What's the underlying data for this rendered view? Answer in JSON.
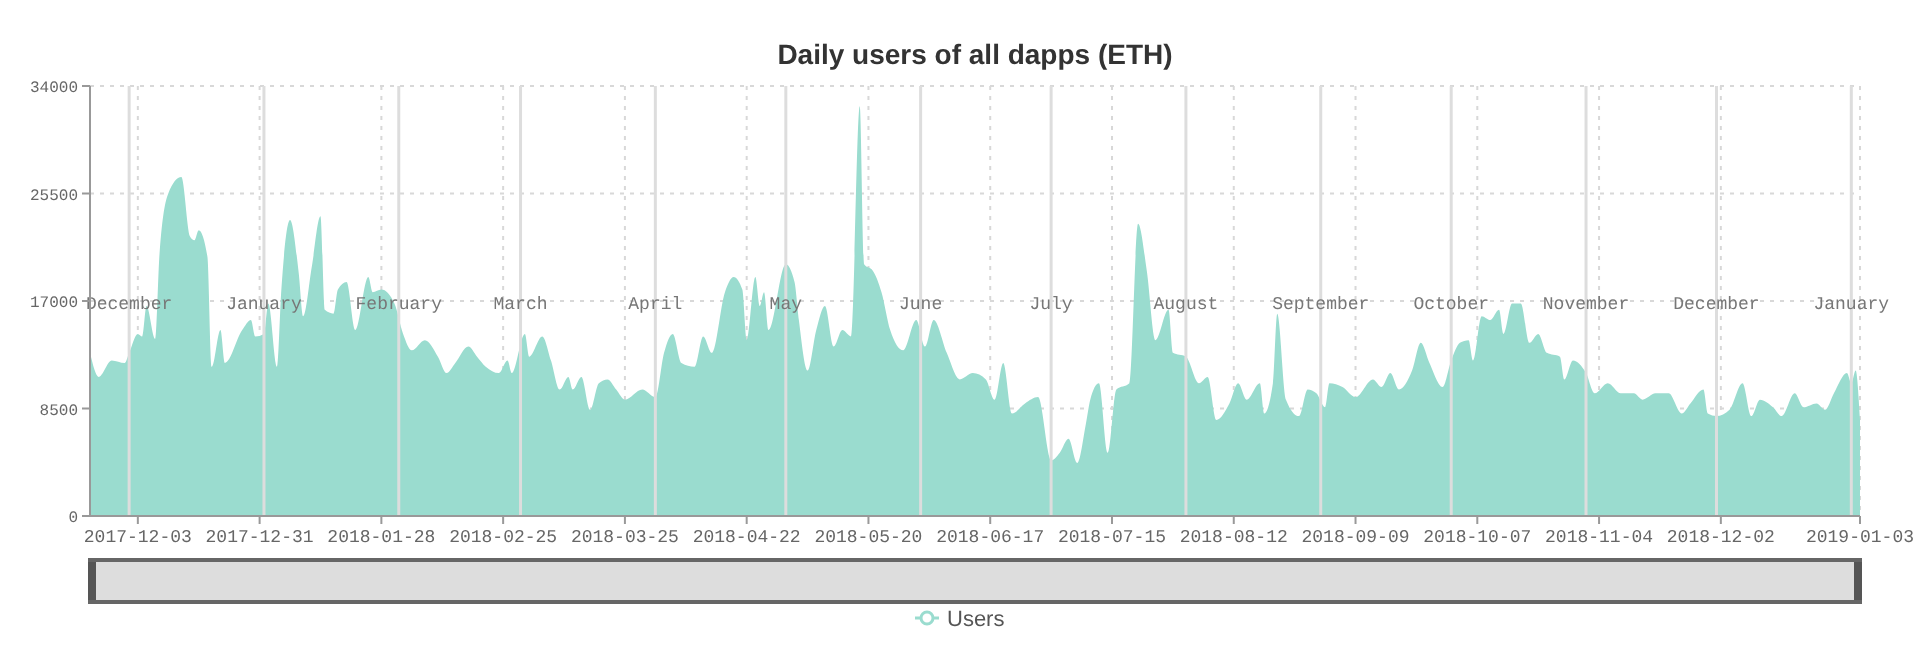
{
  "chart_data": {
    "type": "area",
    "title": "Daily users of all dapps (ETH)",
    "xlim": [
      "2017-11-22",
      "2019-01-03"
    ],
    "xticks": [
      "2017-12-03",
      "2017-12-31",
      "2018-01-28",
      "2018-02-25",
      "2018-03-25",
      "2018-04-22",
      "2018-05-20",
      "2018-06-17",
      "2018-07-15",
      "2018-08-12",
      "2018-09-09",
      "2018-10-07",
      "2018-11-04",
      "2018-12-02",
      "2019-01-03"
    ],
    "ylim": [
      0,
      34000
    ],
    "yticks": [
      0,
      8500,
      17000,
      25500,
      34000
    ],
    "grid": true,
    "legend": "bottom",
    "x2lim": [
      "2017-11-22",
      "2019-01-03"
    ],
    "x2ticks": [
      {
        "value": "2017-12-01",
        "label": "December"
      },
      {
        "value": "2018-01-01",
        "label": "January"
      },
      {
        "value": "2018-02-01",
        "label": "February"
      },
      {
        "value": "2018-03-01",
        "label": "March"
      },
      {
        "value": "2018-04-01",
        "label": "April"
      },
      {
        "value": "2018-05-01",
        "label": "May"
      },
      {
        "value": "2018-06-01",
        "label": "June"
      },
      {
        "value": "2018-07-01",
        "label": "July"
      },
      {
        "value": "2018-08-01",
        "label": "August"
      },
      {
        "value": "2018-09-01",
        "label": "September"
      },
      {
        "value": "2018-10-01",
        "label": "October"
      },
      {
        "value": "2018-11-01",
        "label": "November"
      },
      {
        "value": "2018-12-01",
        "label": "December"
      },
      {
        "value": "2019-01-01",
        "label": "January"
      }
    ],
    "series": [
      {
        "name": "Users",
        "color": "#9adccf",
        "x": [
          "2017-11-22",
          "2017-11-24",
          "2017-11-27",
          "2017-11-30",
          "2017-12-01",
          "2017-12-03",
          "2017-12-04",
          "2017-12-05",
          "2017-12-07",
          "2017-12-08",
          "2017-12-10",
          "2017-12-13",
          "2017-12-15",
          "2017-12-16",
          "2017-12-17",
          "2017-12-19",
          "2017-12-20",
          "2017-12-22",
          "2017-12-23",
          "2017-12-27",
          "2017-12-29",
          "2017-12-30",
          "2018-01-01",
          "2018-01-02",
          "2018-01-04",
          "2018-01-05",
          "2018-01-07",
          "2018-01-09",
          "2018-01-10",
          "2018-01-12",
          "2018-01-14",
          "2018-01-15",
          "2018-01-17",
          "2018-01-18",
          "2018-01-20",
          "2018-01-22",
          "2018-01-25",
          "2018-01-26",
          "2018-01-28",
          "2018-01-31",
          "2018-02-02",
          "2018-02-04",
          "2018-02-07",
          "2018-02-10",
          "2018-02-12",
          "2018-02-14",
          "2018-02-17",
          "2018-02-19",
          "2018-02-21",
          "2018-02-24",
          "2018-02-26",
          "2018-02-27",
          "2018-03-02",
          "2018-03-03",
          "2018-03-06",
          "2018-03-08",
          "2018-03-10",
          "2018-03-12",
          "2018-03-13",
          "2018-03-15",
          "2018-03-17",
          "2018-03-19",
          "2018-03-21",
          "2018-03-23",
          "2018-03-25",
          "2018-03-29",
          "2018-04-01",
          "2018-04-03",
          "2018-04-05",
          "2018-04-07",
          "2018-04-10",
          "2018-04-12",
          "2018-04-14",
          "2018-04-17",
          "2018-04-19",
          "2018-04-21",
          "2018-04-22",
          "2018-04-24",
          "2018-04-25",
          "2018-04-26",
          "2018-04-27",
          "2018-05-01",
          "2018-05-03",
          "2018-05-04",
          "2018-05-06",
          "2018-05-08",
          "2018-05-10",
          "2018-05-12",
          "2018-05-14",
          "2018-05-16",
          "2018-05-18",
          "2018-05-19",
          "2018-05-21",
          "2018-05-23",
          "2018-05-25",
          "2018-05-28",
          "2018-05-31",
          "2018-06-02",
          "2018-06-04",
          "2018-06-07",
          "2018-06-10",
          "2018-06-13",
          "2018-06-16",
          "2018-06-18",
          "2018-06-20",
          "2018-06-22",
          "2018-06-25",
          "2018-06-28",
          "2018-07-01",
          "2018-07-03",
          "2018-07-05",
          "2018-07-07",
          "2018-07-09",
          "2018-07-10",
          "2018-07-12",
          "2018-07-14",
          "2018-07-16",
          "2018-07-19",
          "2018-07-21",
          "2018-07-23",
          "2018-07-25",
          "2018-07-28",
          "2018-07-29",
          "2018-08-01",
          "2018-08-04",
          "2018-08-06",
          "2018-08-08",
          "2018-08-11",
          "2018-08-13",
          "2018-08-15",
          "2018-08-18",
          "2018-08-19",
          "2018-08-21",
          "2018-08-22",
          "2018-08-24",
          "2018-08-27",
          "2018-08-29",
          "2018-08-31",
          "2018-09-02",
          "2018-09-03",
          "2018-09-06",
          "2018-09-09",
          "2018-09-13",
          "2018-09-15",
          "2018-09-17",
          "2018-09-19",
          "2018-09-22",
          "2018-09-24",
          "2018-09-26",
          "2018-09-29",
          "2018-10-01",
          "2018-10-03",
          "2018-10-05",
          "2018-10-06",
          "2018-10-08",
          "2018-10-10",
          "2018-10-12",
          "2018-10-13",
          "2018-10-15",
          "2018-10-17",
          "2018-10-19",
          "2018-10-21",
          "2018-10-23",
          "2018-10-26",
          "2018-10-27",
          "2018-10-29",
          "2018-11-01",
          "2018-11-03",
          "2018-11-06",
          "2018-11-09",
          "2018-11-12",
          "2018-11-14",
          "2018-11-17",
          "2018-11-20",
          "2018-11-23",
          "2018-11-25",
          "2018-11-28",
          "2018-11-29",
          "2018-12-01",
          "2018-12-04",
          "2018-12-07",
          "2018-12-09",
          "2018-12-11",
          "2018-12-14",
          "2018-12-16",
          "2018-12-19",
          "2018-12-21",
          "2018-12-24",
          "2018-12-26",
          "2018-12-28",
          "2018-12-31",
          "2019-01-01",
          "2019-01-02",
          "2019-01-03"
        ],
        "values": [
          12900,
          11000,
          12300,
          12100,
          12900,
          14400,
          14200,
          16600,
          14000,
          20800,
          25500,
          26800,
          22100,
          21800,
          22600,
          20500,
          11800,
          14700,
          12100,
          14700,
          15500,
          14200,
          14400,
          16800,
          11800,
          17900,
          23400,
          19200,
          15800,
          19700,
          23700,
          16300,
          16000,
          17900,
          18500,
          14700,
          18900,
          17700,
          17900,
          16800,
          14400,
          13100,
          13900,
          12600,
          11300,
          12100,
          13400,
          12600,
          11800,
          11300,
          12300,
          11300,
          14400,
          12600,
          14200,
          12300,
          10000,
          11000,
          10000,
          11000,
          8400,
          10500,
          10800,
          10000,
          9200,
          10000,
          9400,
          12900,
          14400,
          12100,
          11800,
          14200,
          12900,
          17700,
          18900,
          17900,
          13900,
          18900,
          16600,
          17700,
          14700,
          19900,
          18500,
          15500,
          11500,
          14700,
          16600,
          13400,
          14700,
          14200,
          32400,
          19900,
          19400,
          17700,
          14700,
          13100,
          15500,
          13400,
          15500,
          12900,
          10800,
          11300,
          10800,
          9200,
          12100,
          8100,
          8900,
          9400,
          4400,
          5000,
          6100,
          4200,
          7300,
          9200,
          10500,
          5000,
          10000,
          10500,
          23100,
          19400,
          13900,
          16300,
          12900,
          12600,
          10500,
          11000,
          7600,
          8900,
          10500,
          9200,
          10500,
          8100,
          10500,
          16000,
          9200,
          7900,
          10000,
          9700,
          8600,
          10500,
          10200,
          9400,
          10800,
          10200,
          11300,
          10000,
          11500,
          13700,
          12100,
          10200,
          12300,
          13700,
          13900,
          12300,
          15800,
          15500,
          16300,
          14400,
          16800,
          16800,
          13700,
          14400,
          12900,
          12600,
          10800,
          12300,
          11300,
          9700,
          10500,
          9700,
          9700,
          9200,
          9700,
          9700,
          8100,
          8900,
          10000,
          8100,
          7900,
          8400,
          10500,
          7900,
          9200,
          8600,
          7900,
          9700,
          8600,
          8900,
          8400,
          9700,
          11300,
          10500,
          11500,
          7600
        ]
      }
    ]
  }
}
